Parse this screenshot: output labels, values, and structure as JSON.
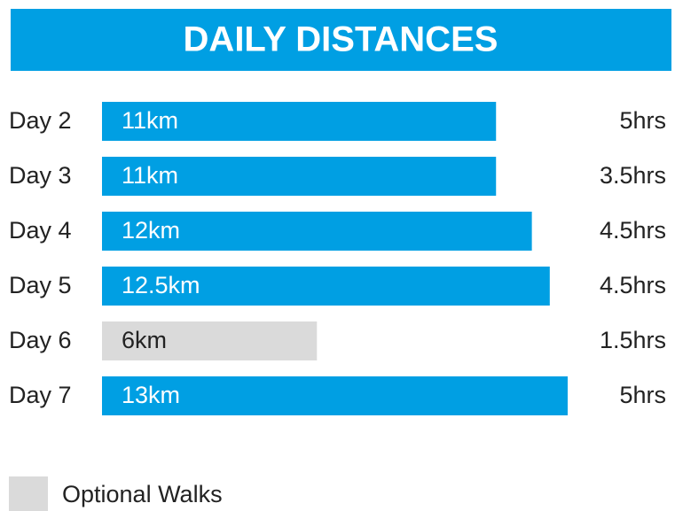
{
  "chart_data": {
    "type": "bar",
    "title": "DAILY DISTANCES",
    "categories": [
      "Day 2",
      "Day 3",
      "Day 4",
      "Day 5",
      "Day 6",
      "Day 7"
    ],
    "values": [
      11,
      11,
      12,
      12.5,
      6,
      13
    ],
    "value_labels": [
      "11km",
      "11km",
      "12km",
      "12.5km",
      "6km",
      "13km"
    ],
    "colors": [
      "#009fe3",
      "#009fe3",
      "#009fe3",
      "#009fe3",
      "#dadada",
      "#009fe3"
    ],
    "hours": [
      5,
      3.5,
      4.5,
      4.5,
      1.5,
      5
    ],
    "hours_labels": [
      "5hrs",
      "3.5hrs",
      "4.5hrs",
      "4.5hrs",
      "1.5hrs",
      "5hrs"
    ],
    "legend": [
      {
        "name": "Optional Walks",
        "color": "#dadada"
      }
    ]
  }
}
